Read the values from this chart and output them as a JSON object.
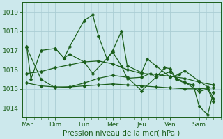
{
  "xlabel": "Pression niveau de la mer( hPa )",
  "bg_color": "#cce8ec",
  "grid_color": "#aacdd4",
  "line_color": "#1a5e1a",
  "ylim": [
    1013.5,
    1019.5
  ],
  "yticks": [
    1014,
    1015,
    1016,
    1017,
    1018,
    1019
  ],
  "day_labels": [
    "Mar",
    "Dim",
    "Lun",
    "Mer",
    "Jeu",
    "Ven",
    "Sam"
  ],
  "day_x": [
    0,
    1,
    2,
    3,
    4,
    5,
    6
  ],
  "series": [
    {
      "x": [
        0.0,
        0.15,
        0.5,
        1.0,
        1.3,
        1.5,
        2.0,
        2.3,
        2.5,
        2.8,
        3.0,
        3.3,
        3.5,
        4.0,
        4.2,
        4.5,
        5.0,
        5.3,
        5.5,
        6.0,
        6.3,
        6.5
      ],
      "y": [
        1017.2,
        1015.5,
        1017.0,
        1017.1,
        1016.6,
        1017.2,
        1018.55,
        1018.85,
        1017.75,
        1016.55,
        1017.0,
        1018.0,
        1016.2,
        1015.85,
        1016.55,
        1016.2,
        1015.6,
        1015.75,
        1015.95,
        1015.4,
        1015.1,
        1014.5
      ]
    },
    {
      "x": [
        0.0,
        0.5,
        1.0,
        1.5,
        2.0,
        2.5,
        3.0,
        3.5,
        4.0,
        4.5,
        5.0,
        5.5,
        6.0,
        6.5
      ],
      "y": [
        1015.8,
        1015.9,
        1016.1,
        1016.25,
        1016.4,
        1016.45,
        1016.3,
        1016.0,
        1015.8,
        1015.75,
        1015.65,
        1015.55,
        1015.35,
        1015.2
      ]
    },
    {
      "x": [
        0.0,
        0.5,
        1.0,
        1.5,
        2.0,
        2.5,
        3.0,
        3.5,
        4.0,
        4.5,
        5.0,
        5.5,
        6.0,
        6.5
      ],
      "y": [
        1015.3,
        1015.15,
        1015.1,
        1015.1,
        1015.15,
        1015.2,
        1015.25,
        1015.2,
        1015.15,
        1015.1,
        1015.05,
        1015.0,
        1015.0,
        1015.05
      ]
    },
    {
      "x": [
        0.0,
        0.5,
        1.0,
        1.5,
        2.0,
        2.5,
        3.0,
        3.5,
        4.0,
        4.5,
        4.8,
        5.0,
        5.2,
        5.5,
        5.8,
        6.0,
        6.3,
        6.5
      ],
      "y": [
        1017.15,
        1015.5,
        1015.05,
        1015.1,
        1015.3,
        1015.55,
        1015.7,
        1015.6,
        1014.9,
        1015.6,
        1016.1,
        1016.05,
        1015.5,
        1015.3,
        1015.2,
        1014.1,
        1013.65,
        1014.8
      ]
    },
    {
      "x": [
        1.0,
        1.3,
        1.5,
        2.0,
        2.3,
        3.0,
        3.3,
        3.5,
        4.0,
        4.3,
        4.5,
        5.0,
        5.2,
        5.5,
        6.0,
        6.3,
        6.5
      ],
      "y": [
        1017.1,
        1016.6,
        1016.8,
        1016.4,
        1015.8,
        1016.9,
        1016.2,
        1015.55,
        1015.6,
        1015.8,
        1015.6,
        1015.9,
        1015.55,
        1015.35,
        1014.85,
        1015.0,
        1014.35
      ]
    }
  ],
  "lw": 0.9,
  "ms": 2.5
}
